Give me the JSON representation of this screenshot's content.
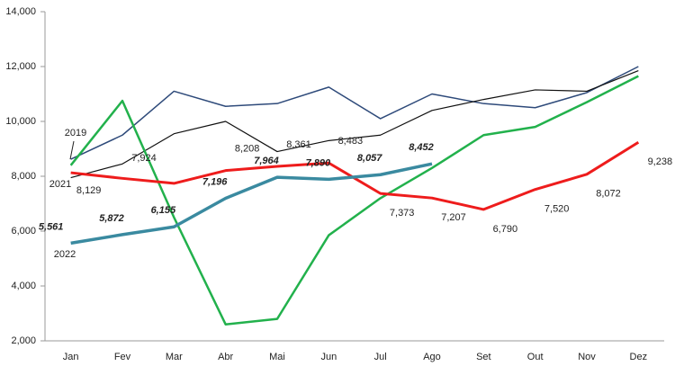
{
  "chart_data": {
    "type": "line",
    "categories": [
      "Jan",
      "Fev",
      "Mar",
      "Abr",
      "Mai",
      "Jun",
      "Jul",
      "Ago",
      "Set",
      "Out",
      "Nov",
      "Dez"
    ],
    "ylim": [
      2000,
      14000
    ],
    "yticks": [
      {
        "value": 2000,
        "label": "2,000"
      },
      {
        "value": 4000,
        "label": "4,000"
      },
      {
        "value": 6000,
        "label": "6,000"
      },
      {
        "value": 8000,
        "label": "8,000"
      },
      {
        "value": 10000,
        "label": "10,000"
      },
      {
        "value": 12000,
        "label": "12,000"
      },
      {
        "value": 14000,
        "label": "14,000"
      }
    ],
    "grid": false,
    "series": [
      {
        "name": "2019",
        "color": "#2e4a7a",
        "values": [
          8620,
          9500,
          11100,
          10550,
          10650,
          11250,
          10100,
          11000,
          10650,
          10500,
          11050,
          12000
        ]
      },
      {
        "color": "#111111",
        "values": [
          7950,
          8450,
          9550,
          10000,
          8900,
          9300,
          9500,
          10400,
          10800,
          11150,
          11100,
          11850
        ]
      },
      {
        "color": "#22b14c",
        "values": [
          8400,
          10750,
          6500,
          2600,
          2800,
          5850,
          7200,
          8300,
          9500,
          9800,
          10700,
          11650
        ]
      },
      {
        "name": "2021",
        "color": "#ee1c1c",
        "values": [
          8129,
          7924,
          7740,
          8208,
          8361,
          8483,
          7373,
          7207,
          6790,
          7520,
          8072,
          9238
        ],
        "value_labels": [
          "8,129",
          "7,924",
          null,
          "8,208",
          "8,361",
          "8,483",
          "7,373",
          "7,207",
          "6,790",
          "7,520",
          "8,072",
          "9,238"
        ]
      },
      {
        "name": "2022",
        "color": "#3a8aa0",
        "values": [
          5561,
          5872,
          6155,
          7196,
          7964,
          7890,
          8057,
          8452,
          null,
          null,
          null,
          null
        ],
        "value_labels": [
          "5,561",
          "5,872",
          "6,155",
          "7,196",
          "7,964",
          "7,890",
          "8,057",
          "8,452",
          null,
          null,
          null,
          null
        ]
      }
    ]
  }
}
